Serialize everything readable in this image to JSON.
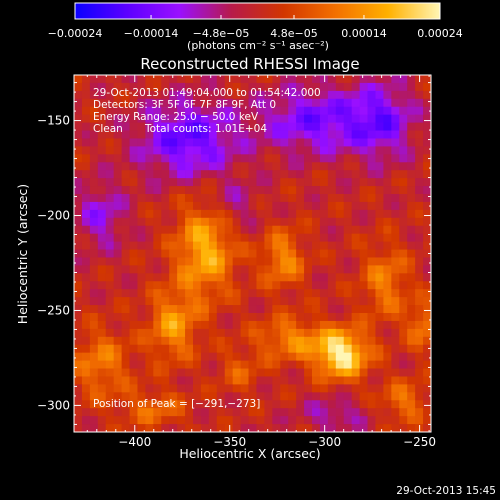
{
  "chart_data": {
    "type": "heatmap",
    "title": "Reconstructed RHESSI Image",
    "xlabel": "Heliocentric X (arcsec)",
    "ylabel": "Heliocentric Y (arcsec)",
    "xlim": [
      -432,
      -244
    ],
    "ylim": [
      -314,
      -126
    ],
    "x_ticks": [
      -400,
      -350,
      -300,
      -250
    ],
    "y_ticks": [
      -150,
      -200,
      -250,
      -300
    ],
    "x_tick_labels": [
      "−400",
      "−350",
      "−300",
      "−250"
    ],
    "y_tick_labels": [
      "−150",
      "−200",
      "−250",
      "−300"
    ],
    "colorbar": {
      "range": [
        -0.00024,
        0.00024
      ],
      "ticks": [
        -0.00024,
        -0.00014,
        -4.8e-05,
        4.8e-05,
        0.00014,
        0.00024
      ],
      "tick_labels": [
        "−0.00024",
        "−0.00014",
        "−4.8e−05",
        "4.8e−05",
        "0.00014",
        "0.00024"
      ],
      "unit_label": "(photons cm⁻² s⁻¹ asec⁻²)",
      "stops": [
        "#0a00ff",
        "#5c00ff",
        "#9a10ff",
        "#b71a4a",
        "#d23600",
        "#f37000",
        "#ffb000",
        "#fff6b4"
      ]
    },
    "annotations": {
      "time_range": "29-Oct-2013 01:49:04.000 to 01:54:42.000",
      "detectors": "Detectors: 3F 5F 6F 7F 8F 9F, Att 0",
      "energy": "Energy Range: 25.0 − 50.0 keV",
      "clean": "Clean",
      "total_counts": "Total counts: 1.01E+04",
      "peak": "Position of Peak = [−291,−273]"
    },
    "peak_position": [
      -291,
      -273
    ],
    "sources": [
      {
        "x": -291,
        "y": -273,
        "amp": 0.00024,
        "sx": 10,
        "sy": 9
      },
      {
        "x": -363,
        "y": -218,
        "amp": 0.00017,
        "sx": 11,
        "sy": 18
      },
      {
        "x": -380,
        "y": -258,
        "amp": 0.00014,
        "sx": 9,
        "sy": 13
      },
      {
        "x": -322,
        "y": -223,
        "amp": 0.000125,
        "sx": 8,
        "sy": 11
      },
      {
        "x": -318,
        "y": -265,
        "amp": 0.00012,
        "sx": 13,
        "sy": 8
      },
      {
        "x": -268,
        "y": -235,
        "amp": 0.00011,
        "sx": 9,
        "sy": 14
      },
      {
        "x": -418,
        "y": -278,
        "amp": 0.00011,
        "sx": 11,
        "sy": 13
      },
      {
        "x": -390,
        "y": -302,
        "amp": 9e-05,
        "sx": 12,
        "sy": 7
      },
      {
        "x": -258,
        "y": -298,
        "amp": 0.0001,
        "sx": 9,
        "sy": 8
      },
      {
        "x": -248,
        "y": -258,
        "amp": 0.00011,
        "sx": 6,
        "sy": 9
      },
      {
        "x": -345,
        "y": -282,
        "amp": 7e-05,
        "sx": 8,
        "sy": 8
      },
      {
        "x": -372,
        "y": -160,
        "amp": -0.00016,
        "sx": 18,
        "sy": 14
      },
      {
        "x": -305,
        "y": -150,
        "amp": -0.00014,
        "sx": 20,
        "sy": 12
      },
      {
        "x": -270,
        "y": -150,
        "amp": -0.00013,
        "sx": 12,
        "sy": 14
      },
      {
        "x": -418,
        "y": -200,
        "amp": -0.0001,
        "sx": 9,
        "sy": 12
      },
      {
        "x": -348,
        "y": -195,
        "amp": -7e-05,
        "sx": 9,
        "sy": 9
      },
      {
        "x": -295,
        "y": -305,
        "amp": -8e-05,
        "sx": 12,
        "sy": 6
      }
    ],
    "grid": false,
    "colorbar_position": "top"
  },
  "footer_timestamp": "29-Oct-2013 15:45"
}
